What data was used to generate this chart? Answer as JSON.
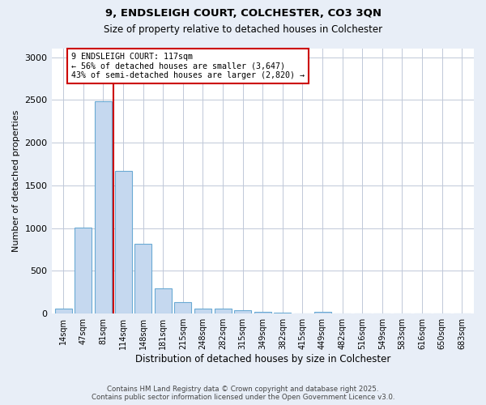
{
  "title_line1": "9, ENDSLEIGH COURT, COLCHESTER, CO3 3QN",
  "title_line2": "Size of property relative to detached houses in Colchester",
  "xlabel": "Distribution of detached houses by size in Colchester",
  "ylabel": "Number of detached properties",
  "bar_labels": [
    "14sqm",
    "47sqm",
    "81sqm",
    "114sqm",
    "148sqm",
    "181sqm",
    "215sqm",
    "248sqm",
    "282sqm",
    "315sqm",
    "349sqm",
    "382sqm",
    "415sqm",
    "449sqm",
    "482sqm",
    "516sqm",
    "549sqm",
    "583sqm",
    "616sqm",
    "650sqm",
    "683sqm"
  ],
  "bar_values": [
    55,
    1005,
    2480,
    1670,
    820,
    300,
    130,
    60,
    55,
    40,
    25,
    15,
    0,
    20,
    0,
    0,
    0,
    0,
    0,
    0,
    0
  ],
  "bar_color": "#c5d8ef",
  "bar_edgecolor": "#6aaad4",
  "property_line_color": "#cc0000",
  "annotation_text": "9 ENDSLEIGH COURT: 117sqm\n← 56% of detached houses are smaller (3,647)\n43% of semi-detached houses are larger (2,820) →",
  "annotation_box_color": "#cc0000",
  "ylim": [
    0,
    3100
  ],
  "footnote1": "Contains HM Land Registry data © Crown copyright and database right 2025.",
  "footnote2": "Contains public sector information licensed under the Open Government Licence v3.0.",
  "bg_color": "#e8eef7",
  "plot_bg_color": "#ffffff"
}
